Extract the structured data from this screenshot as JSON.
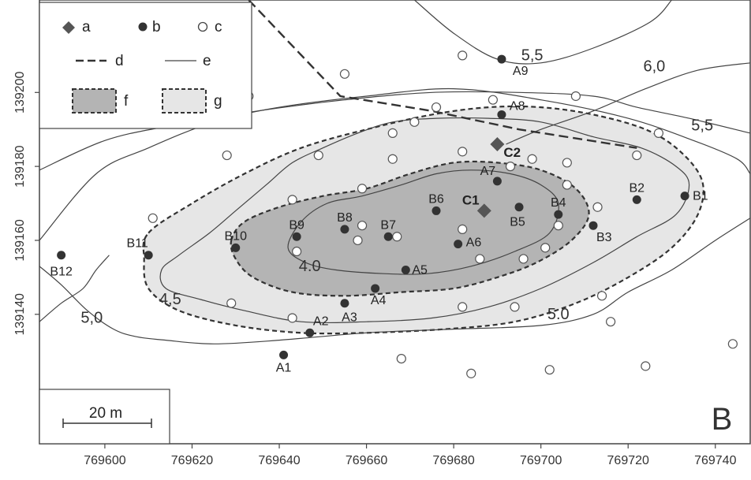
{
  "panel_label": "B",
  "colors": {
    "background": "#ffffff",
    "frame": "#333333",
    "zone_f": "#b4b4b4",
    "zone_g": "#e6e6e6",
    "point_b": "#333333",
    "point_a": "#555555"
  },
  "x_axis": {
    "range": [
      769585,
      769748
    ],
    "ticks": [
      769600,
      769620,
      769640,
      769660,
      769680,
      769700,
      769720,
      769740
    ]
  },
  "y_axis": {
    "range": [
      139105,
      139225
    ],
    "ticks": [
      139140,
      139160,
      139180,
      139200
    ]
  },
  "legend": {
    "items": [
      {
        "symbol": "diamond",
        "label": "a"
      },
      {
        "symbol": "filled-circle",
        "label": "b"
      },
      {
        "symbol": "open-circle",
        "label": "c"
      },
      {
        "symbol": "dashed-line",
        "label": "d"
      },
      {
        "symbol": "thin-line",
        "label": "e"
      },
      {
        "symbol": "dark-zone",
        "label": "f"
      },
      {
        "symbol": "light-zone",
        "label": "g"
      }
    ]
  },
  "scale_bar": {
    "label": "20 m",
    "length_m": 20
  },
  "contour_labels": [
    {
      "text": "4.0",
      "x": 769647,
      "y": 139153
    },
    {
      "text": "4,5",
      "x": 769615,
      "y": 139144
    },
    {
      "text": "5,0",
      "x": 769597,
      "y": 139139
    },
    {
      "text": "5.0",
      "x": 769704,
      "y": 139140
    },
    {
      "text": "5,5",
      "x": 769698,
      "y": 139210
    },
    {
      "text": "6,0",
      "x": 769726,
      "y": 139207
    },
    {
      "text": "5,5",
      "x": 769737,
      "y": 139191
    }
  ],
  "sampling_a": [
    {
      "label": "C1",
      "x": 769687,
      "y": 139168
    },
    {
      "label": "C2",
      "x": 769690,
      "y": 139186
    }
  ],
  "sampling_b": [
    {
      "label": "A1",
      "x": 769641,
      "y": 139129
    },
    {
      "label": "A2",
      "x": 769647,
      "y": 139135
    },
    {
      "label": "A3",
      "x": 769655,
      "y": 139143
    },
    {
      "label": "A4",
      "x": 769662,
      "y": 139147
    },
    {
      "label": "A5",
      "x": 769669,
      "y": 139152
    },
    {
      "label": "A6",
      "x": 769681,
      "y": 139159
    },
    {
      "label": "A7",
      "x": 769690,
      "y": 139176
    },
    {
      "label": "A8",
      "x": 769691,
      "y": 139194
    },
    {
      "label": "A9",
      "x": 769691,
      "y": 139209
    },
    {
      "label": "B1",
      "x": 769733,
      "y": 139172
    },
    {
      "label": "B2",
      "x": 769722,
      "y": 139171
    },
    {
      "label": "B3",
      "x": 769712,
      "y": 139164
    },
    {
      "label": "B4",
      "x": 769704,
      "y": 139167
    },
    {
      "label": "B5",
      "x": 769695,
      "y": 139169
    },
    {
      "label": "B6",
      "x": 769676,
      "y": 139168
    },
    {
      "label": "B7",
      "x": 769665,
      "y": 139161
    },
    {
      "label": "B8",
      "x": 769655,
      "y": 139163
    },
    {
      "label": "B9",
      "x": 769644,
      "y": 139161
    },
    {
      "label": "B10",
      "x": 769630,
      "y": 139158
    },
    {
      "label": "B11",
      "x": 769610,
      "y": 139156
    },
    {
      "label": "B12",
      "x": 769590,
      "y": 139156
    }
  ],
  "sampling_c": [
    {
      "x": 769682,
      "y": 139210
    },
    {
      "x": 769655,
      "y": 139205
    },
    {
      "x": 769633,
      "y": 139199
    },
    {
      "x": 769689,
      "y": 139198
    },
    {
      "x": 769708,
      "y": 139199
    },
    {
      "x": 769676,
      "y": 139196
    },
    {
      "x": 769671,
      "y": 139192
    },
    {
      "x": 769666,
      "y": 139189
    },
    {
      "x": 769727,
      "y": 139189
    },
    {
      "x": 769628,
      "y": 139183
    },
    {
      "x": 769649,
      "y": 139183
    },
    {
      "x": 769666,
      "y": 139182
    },
    {
      "x": 769682,
      "y": 139184
    },
    {
      "x": 769698,
      "y": 139182
    },
    {
      "x": 769706,
      "y": 139181
    },
    {
      "x": 769722,
      "y": 139183
    },
    {
      "x": 769693,
      "y": 139180
    },
    {
      "x": 769659,
      "y": 139174
    },
    {
      "x": 769643,
      "y": 139171
    },
    {
      "x": 769706,
      "y": 139175
    },
    {
      "x": 769713,
      "y": 139169
    },
    {
      "x": 769611,
      "y": 139166
    },
    {
      "x": 769704,
      "y": 139164
    },
    {
      "x": 769682,
      "y": 139163
    },
    {
      "x": 769659,
      "y": 139164
    },
    {
      "x": 769667,
      "y": 139161
    },
    {
      "x": 769658,
      "y": 139160
    },
    {
      "x": 769644,
      "y": 139157
    },
    {
      "x": 769701,
      "y": 139158
    },
    {
      "x": 769686,
      "y": 139155
    },
    {
      "x": 769696,
      "y": 139155
    },
    {
      "x": 769714,
      "y": 139145
    },
    {
      "x": 769629,
      "y": 139143
    },
    {
      "x": 769643,
      "y": 139139
    },
    {
      "x": 769682,
      "y": 139142
    },
    {
      "x": 769694,
      "y": 139142
    },
    {
      "x": 769716,
      "y": 139138
    },
    {
      "x": 769744,
      "y": 139132
    },
    {
      "x": 769668,
      "y": 139128
    },
    {
      "x": 769684,
      "y": 139124
    },
    {
      "x": 769702,
      "y": 139125
    },
    {
      "x": 769724,
      "y": 139126
    }
  ],
  "contours": [
    {
      "level": "4.0",
      "points": [
        [
          769645,
          139165
        ],
        [
          769651,
          139170
        ],
        [
          769659,
          139172
        ],
        [
          769668,
          139175
        ],
        [
          769676,
          139178
        ],
        [
          769684,
          139179
        ],
        [
          769693,
          139178
        ],
        [
          769700,
          139175
        ],
        [
          769704,
          139170
        ],
        [
          769702,
          139162
        ],
        [
          769694,
          139157
        ],
        [
          769684,
          139153
        ],
        [
          769674,
          139151
        ],
        [
          769664,
          139151
        ],
        [
          769653,
          139152
        ],
        [
          769646,
          139154
        ],
        [
          769642,
          139158
        ]
      ]
    },
    {
      "level": "4,5",
      "points": [
        [
          769637,
          139175
        ],
        [
          769643,
          139181
        ],
        [
          769650,
          139185
        ],
        [
          769658,
          139189
        ],
        [
          769666,
          139192
        ],
        [
          769676,
          139193
        ],
        [
          769688,
          139193
        ],
        [
          769700,
          139192
        ],
        [
          769712,
          139188
        ],
        [
          769723,
          139185
        ],
        [
          769731,
          139180
        ],
        [
          769734,
          139175
        ],
        [
          769731,
          139167
        ],
        [
          769722,
          139161
        ],
        [
          769712,
          139154
        ],
        [
          769700,
          139147
        ],
        [
          769688,
          139142
        ],
        [
          769675,
          139139
        ],
        [
          769660,
          139138
        ],
        [
          769645,
          139138
        ],
        [
          769632,
          139141
        ],
        [
          769622,
          139144
        ],
        [
          769614,
          139147
        ],
        [
          769613,
          139152
        ],
        [
          769617,
          139156
        ],
        [
          769624,
          139162
        ],
        [
          769630,
          139168
        ]
      ]
    }
  ],
  "open_contours": [
    {
      "level": "5,0",
      "points": [
        [
          769585,
          139160
        ],
        [
          769598,
          139178
        ],
        [
          769610,
          139185
        ],
        [
          769625,
          139192
        ],
        [
          769640,
          139196
        ],
        [
          769660,
          139199
        ],
        [
          769680,
          139201
        ],
        [
          769700,
          139198
        ],
        [
          769720,
          139193
        ],
        [
          769735,
          139187
        ],
        [
          769745,
          139182
        ],
        [
          769748,
          139178
        ]
      ]
    },
    {
      "level": "5,0",
      "points": [
        [
          769585,
          139153
        ],
        [
          769590,
          139148
        ],
        [
          769596,
          139141
        ],
        [
          769602,
          139136
        ],
        [
          769607,
          139134
        ],
        [
          769614,
          139133
        ],
        [
          769625,
          139132
        ],
        [
          769640,
          139133
        ],
        [
          769660,
          139135
        ],
        [
          769680,
          139136
        ],
        [
          769700,
          139137
        ],
        [
          769712,
          139140
        ],
        [
          769720,
          139146
        ],
        [
          769730,
          139152
        ],
        [
          769740,
          139160
        ],
        [
          769748,
          139166
        ]
      ]
    },
    {
      "level": "5,5",
      "points": [
        [
          769585,
          139179
        ],
        [
          769600,
          139187
        ],
        [
          769615,
          139191
        ],
        [
          769635,
          139195
        ],
        [
          769655,
          139198
        ],
        [
          769675,
          139200
        ],
        [
          769695,
          139200
        ],
        [
          769712,
          139199
        ],
        [
          769722,
          139196
        ],
        [
          769734,
          139193
        ],
        [
          769748,
          139189
        ]
      ]
    },
    {
      "level": "5,5",
      "points": [
        [
          769671,
          139225
        ],
        [
          769680,
          139216
        ],
        [
          769690,
          139209
        ],
        [
          769700,
          139208
        ],
        [
          769712,
          139212
        ],
        [
          769725,
          139219
        ],
        [
          769730,
          139225
        ]
      ]
    },
    {
      "level": "6,0",
      "points": [
        [
          769692,
          139186
        ],
        [
          769700,
          139190
        ],
        [
          769712,
          139195
        ],
        [
          769724,
          139201
        ],
        [
          769736,
          139206
        ],
        [
          769748,
          139208
        ]
      ]
    },
    {
      "level": "e",
      "points": [
        [
          769585,
          139138
        ],
        [
          769590,
          139143
        ],
        [
          769595,
          139147
        ],
        [
          769598,
          139152
        ],
        [
          769601,
          139156
        ]
      ]
    }
  ],
  "zone_f": [
    [
      769629,
      139160
    ],
    [
      769632,
      139165
    ],
    [
      769640,
      139169
    ],
    [
      769650,
      139172
    ],
    [
      769660,
      139174
    ],
    [
      769670,
      139178
    ],
    [
      769680,
      139181
    ],
    [
      769690,
      139181
    ],
    [
      769700,
      139179
    ],
    [
      769708,
      139174
    ],
    [
      769711,
      139167
    ],
    [
      769707,
      139160
    ],
    [
      769699,
      139154
    ],
    [
      769690,
      139150
    ],
    [
      769680,
      139147
    ],
    [
      769668,
      139146
    ],
    [
      769655,
      139145
    ],
    [
      769643,
      139146
    ],
    [
      769634,
      139150
    ],
    [
      769630,
      139155
    ]
  ],
  "zone_g": [
    [
      769610,
      139162
    ],
    [
      769620,
      139170
    ],
    [
      769632,
      139178
    ],
    [
      769645,
      139185
    ],
    [
      769660,
      139190
    ],
    [
      769675,
      139194
    ],
    [
      769688,
      139196
    ],
    [
      769700,
      139196
    ],
    [
      769712,
      139194
    ],
    [
      769724,
      139190
    ],
    [
      769732,
      139184
    ],
    [
      769737,
      139176
    ],
    [
      769736,
      139167
    ],
    [
      769730,
      139158
    ],
    [
      769720,
      139150
    ],
    [
      769708,
      139143
    ],
    [
      769694,
      139138
    ],
    [
      769678,
      139136
    ],
    [
      769660,
      139135
    ],
    [
      769645,
      139135
    ],
    [
      769630,
      139137
    ],
    [
      769617,
      139141
    ],
    [
      769610,
      139147
    ],
    [
      769609,
      139155
    ]
  ],
  "fault_line_d": [
    [
      769633,
      139225
    ],
    [
      769654,
      139199
    ],
    [
      769675,
      139195
    ],
    [
      769695,
      139190
    ],
    [
      769722,
      139185
    ]
  ]
}
